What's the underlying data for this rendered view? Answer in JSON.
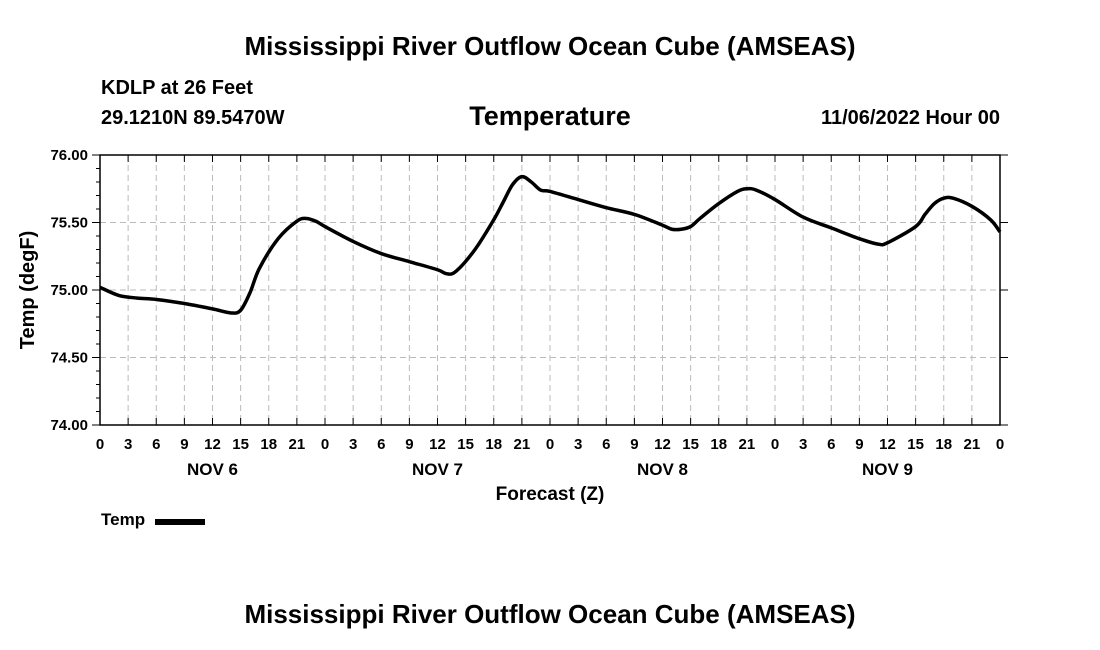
{
  "page": {
    "title_top": "Mississippi River Outflow Ocean Cube (AMSEAS)",
    "title_bottom": "Mississippi River Outflow Ocean Cube (AMSEAS)",
    "station": "KDLP at 26 Feet",
    "coords": "29.1210N  89.5470W",
    "subtitle": "Temperature",
    "datetime": "11/06/2022 Hour 00",
    "legend_label": "Temp"
  },
  "chart_data": {
    "type": "line",
    "title": "Temperature",
    "xlabel": "Forecast (Z)",
    "ylabel": "Temp (degF)",
    "ylim": [
      74.0,
      76.0
    ],
    "yticks": [
      "74.00",
      "74.50",
      "75.00",
      "75.50",
      "76.00"
    ],
    "xlim_hours": [
      0,
      96
    ],
    "xtick_labels": [
      "0",
      "3",
      "6",
      "9",
      "12",
      "15",
      "18",
      "21",
      "0",
      "3",
      "6",
      "9",
      "12",
      "15",
      "18",
      "21",
      "0",
      "3",
      "6",
      "9",
      "12",
      "15",
      "18",
      "21",
      "0",
      "3",
      "6",
      "9",
      "12",
      "15",
      "18",
      "21",
      "0"
    ],
    "day_labels": [
      "NOV 6",
      "NOV 7",
      "NOV 8",
      "NOV 9"
    ],
    "grid": true,
    "legend_position": "bottom-left",
    "series": [
      {
        "name": "Temp",
        "color": "#000000",
        "points": [
          [
            0,
            75.02
          ],
          [
            2,
            74.96
          ],
          [
            4,
            74.94
          ],
          [
            6,
            74.93
          ],
          [
            9,
            74.9
          ],
          [
            12,
            74.86
          ],
          [
            14,
            74.83
          ],
          [
            15,
            74.85
          ],
          [
            16,
            74.98
          ],
          [
            17,
            75.16
          ],
          [
            19,
            75.38
          ],
          [
            21,
            75.51
          ],
          [
            22,
            75.53
          ],
          [
            23,
            75.51
          ],
          [
            24,
            75.47
          ],
          [
            27,
            75.36
          ],
          [
            30,
            75.27
          ],
          [
            33,
            75.21
          ],
          [
            36,
            75.15
          ],
          [
            37,
            75.12
          ],
          [
            38,
            75.14
          ],
          [
            40,
            75.3
          ],
          [
            42,
            75.52
          ],
          [
            43,
            75.65
          ],
          [
            44,
            75.78
          ],
          [
            45,
            75.84
          ],
          [
            46,
            75.8
          ],
          [
            47,
            75.74
          ],
          [
            48,
            75.73
          ],
          [
            51,
            75.67
          ],
          [
            54,
            75.61
          ],
          [
            57,
            75.56
          ],
          [
            60,
            75.48
          ],
          [
            61,
            75.45
          ],
          [
            62,
            75.45
          ],
          [
            63,
            75.47
          ],
          [
            64,
            75.53
          ],
          [
            66,
            75.64
          ],
          [
            68,
            75.73
          ],
          [
            69,
            75.75
          ],
          [
            70,
            75.74
          ],
          [
            72,
            75.67
          ],
          [
            75,
            75.54
          ],
          [
            78,
            75.46
          ],
          [
            81,
            75.38
          ],
          [
            83,
            75.34
          ],
          [
            84,
            75.35
          ],
          [
            87,
            75.47
          ],
          [
            88,
            75.56
          ],
          [
            89,
            75.64
          ],
          [
            90,
            75.68
          ],
          [
            91,
            75.68
          ],
          [
            93,
            75.62
          ],
          [
            95,
            75.52
          ],
          [
            96,
            75.43
          ]
        ]
      }
    ]
  }
}
